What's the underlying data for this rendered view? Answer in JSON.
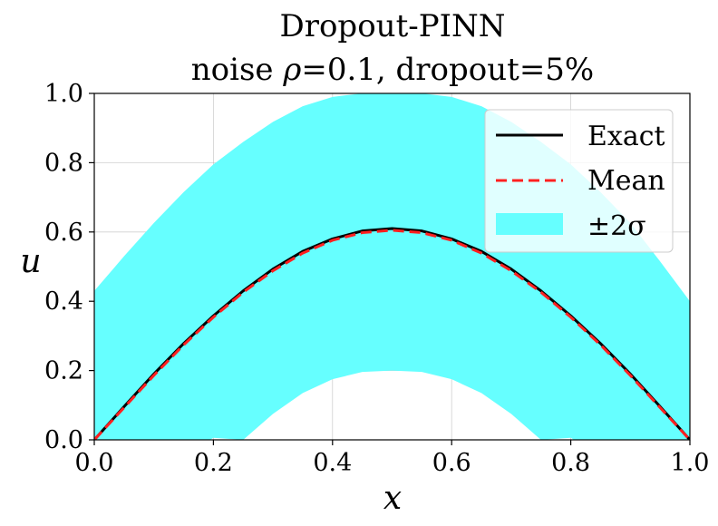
{
  "chart_data": {
    "type": "line",
    "title": "Dropout-PINN",
    "subtitle": "noise ρ=0.1, dropout=5%",
    "xlabel": "x",
    "ylabel": "u",
    "xlim": [
      0.0,
      1.0
    ],
    "ylim": [
      0.0,
      1.0
    ],
    "xticks": [
      "0.0",
      "0.2",
      "0.4",
      "0.6",
      "0.8",
      "1.0"
    ],
    "yticks": [
      "0.0",
      "0.2",
      "0.4",
      "0.6",
      "0.8",
      "1.0"
    ],
    "grid": true,
    "legend_position": "top-right",
    "x": [
      0.0,
      0.05,
      0.1,
      0.15,
      0.2,
      0.25,
      0.3,
      0.35,
      0.4,
      0.45,
      0.5,
      0.55,
      0.6,
      0.65,
      0.7,
      0.75,
      0.8,
      0.85,
      0.9,
      0.95,
      1.0
    ],
    "series": [
      {
        "name": "Exact",
        "style": "solid",
        "color": "#000000",
        "values": [
          0.0,
          0.096,
          0.19,
          0.278,
          0.358,
          0.43,
          0.493,
          0.544,
          0.58,
          0.603,
          0.61,
          0.603,
          0.58,
          0.544,
          0.493,
          0.43,
          0.358,
          0.278,
          0.19,
          0.096,
          0.0
        ]
      },
      {
        "name": "Mean",
        "style": "dashed",
        "color": "#ff2020",
        "values": [
          0.0,
          0.093,
          0.186,
          0.274,
          0.354,
          0.426,
          0.488,
          0.539,
          0.576,
          0.598,
          0.605,
          0.598,
          0.576,
          0.539,
          0.488,
          0.426,
          0.354,
          0.274,
          0.186,
          0.093,
          0.0
        ]
      },
      {
        "name": "±2σ",
        "style": "band",
        "color": "#66ffff",
        "upper": [
          0.43,
          0.53,
          0.626,
          0.715,
          0.795,
          0.86,
          0.918,
          0.963,
          0.99,
          1.0,
          1.0,
          1.0,
          0.99,
          0.963,
          0.918,
          0.86,
          0.795,
          0.715,
          0.626,
          0.515,
          0.4
        ],
        "lower": [
          null,
          null,
          null,
          null,
          null,
          0.0,
          0.075,
          0.135,
          0.175,
          0.196,
          0.2,
          0.196,
          0.175,
          0.135,
          0.075,
          0.0,
          null,
          null,
          null,
          null,
          null
        ]
      }
    ]
  }
}
